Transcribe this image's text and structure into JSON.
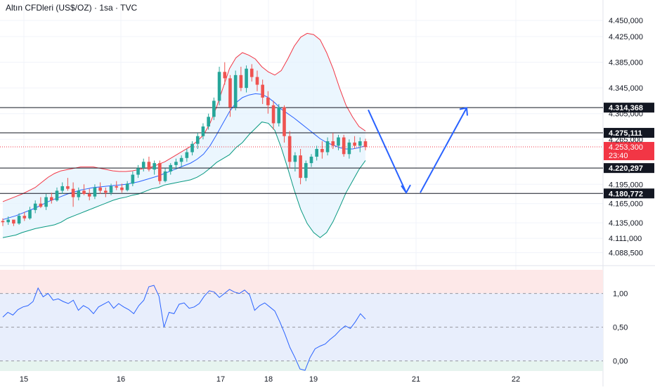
{
  "header": {
    "title": "Altın CFDleri (US$/OZ) · 1sa · TVC"
  },
  "colors": {
    "up": "#26a69a",
    "down": "#ef5350",
    "grid": "#f0f3fa",
    "text": "#131722",
    "bb_upper": "#f23645",
    "bb_lower": "#089981",
    "bb_basis": "#2962ff",
    "bb_fill": "#e3f2fd",
    "projection": "#2962ff",
    "osc_line": "#2962ff",
    "osc_top_band": "#fde8e8",
    "osc_mid_band": "#e8eefc",
    "osc_bottom_band": "#e6f4ef",
    "price_tag": "#f23645"
  },
  "chart_data": [
    {
      "type": "candlestick",
      "price_axis": {
        "ticks": [
          "4.450,000",
          "4.425,000",
          "4.385,000",
          "4.345,000",
          "4.305,000",
          "4.265,000",
          "4.195,000",
          "4.165,000",
          "4.135,000",
          "4.111,000",
          "4.088,500"
        ],
        "tick_values": [
          4450,
          4425,
          4385,
          4345,
          4305,
          4265,
          4195,
          4165,
          4135,
          4111,
          4088.5
        ],
        "range": [
          4075,
          4460
        ]
      },
      "time_axis": {
        "labels": [
          "15",
          "16",
          "17",
          "18",
          "19",
          "21",
          "22"
        ]
      },
      "horizontal_levels": [
        {
          "label": "4.314,368",
          "value": 4314.368
        },
        {
          "label": "4.275,111",
          "value": 4275.111
        },
        {
          "label": "4.220,297",
          "value": 4220.297
        },
        {
          "label": "4.180,772",
          "value": 4180.772
        }
      ],
      "current_price": {
        "label": "4.253,300",
        "value": 4253.3,
        "countdown": "23:40"
      },
      "candles": [
        [
          4138,
          4142,
          4130,
          4136
        ],
        [
          4136,
          4145,
          4132,
          4140
        ],
        [
          4140,
          4138,
          4130,
          4134
        ],
        [
          4134,
          4150,
          4132,
          4146
        ],
        [
          4146,
          4152,
          4138,
          4142
        ],
        [
          4142,
          4160,
          4140,
          4155
        ],
        [
          4155,
          4170,
          4150,
          4165
        ],
        [
          4165,
          4175,
          4158,
          4160
        ],
        [
          4160,
          4180,
          4155,
          4175
        ],
        [
          4175,
          4182,
          4165,
          4170
        ],
        [
          4170,
          4190,
          4168,
          4185
        ],
        [
          4185,
          4198,
          4180,
          4192
        ],
        [
          4192,
          4205,
          4185,
          4188
        ],
        [
          4188,
          4198,
          4160,
          4175
        ],
        [
          4175,
          4190,
          4170,
          4185
        ],
        [
          4185,
          4195,
          4178,
          4180
        ],
        [
          4180,
          4188,
          4170,
          4176
        ],
        [
          4176,
          4195,
          4172,
          4190
        ],
        [
          4190,
          4198,
          4180,
          4185
        ],
        [
          4185,
          4190,
          4175,
          4182
        ],
        [
          4182,
          4196,
          4178,
          4192
        ],
        [
          4192,
          4200,
          4186,
          4190
        ],
        [
          4190,
          4196,
          4182,
          4186
        ],
        [
          4186,
          4200,
          4184,
          4196
        ],
        [
          4196,
          4215,
          4192,
          4210
        ],
        [
          4210,
          4225,
          4205,
          4220
        ],
        [
          4220,
          4235,
          4215,
          4230
        ],
        [
          4230,
          4238,
          4215,
          4218
        ],
        [
          4218,
          4232,
          4210,
          4228
        ],
        [
          4228,
          4232,
          4195,
          4200
        ],
        [
          4200,
          4220,
          4198,
          4215
        ],
        [
          4215,
          4228,
          4210,
          4225
        ],
        [
          4225,
          4235,
          4218,
          4230
        ],
        [
          4230,
          4240,
          4222,
          4236
        ],
        [
          4236,
          4250,
          4230,
          4245
        ],
        [
          4245,
          4262,
          4240,
          4258
        ],
        [
          4258,
          4275,
          4250,
          4270
        ],
        [
          4270,
          4290,
          4265,
          4285
        ],
        [
          4285,
          4305,
          4280,
          4300
        ],
        [
          4300,
          4330,
          4295,
          4325
        ],
        [
          4325,
          4378,
          4318,
          4370
        ],
        [
          4370,
          4385,
          4350,
          4360
        ],
        [
          4360,
          4365,
          4300,
          4315
        ],
        [
          4315,
          4372,
          4310,
          4365
        ],
        [
          4365,
          4378,
          4340,
          4345
        ],
        [
          4345,
          4380,
          4338,
          4375
        ],
        [
          4375,
          4382,
          4355,
          4362
        ],
        [
          4362,
          4372,
          4340,
          4350
        ],
        [
          4350,
          4358,
          4320,
          4330
        ],
        [
          4330,
          4340,
          4305,
          4318
        ],
        [
          4318,
          4325,
          4280,
          4290
        ],
        [
          4290,
          4320,
          4285,
          4315
        ],
        [
          4315,
          4318,
          4260,
          4270
        ],
        [
          4270,
          4278,
          4220,
          4230
        ],
        [
          4230,
          4245,
          4215,
          4240
        ],
        [
          4240,
          4250,
          4195,
          4205
        ],
        [
          4205,
          4232,
          4200,
          4228
        ],
        [
          4228,
          4242,
          4222,
          4238
        ],
        [
          4238,
          4255,
          4232,
          4250
        ],
        [
          4250,
          4262,
          4235,
          4245
        ],
        [
          4245,
          4268,
          4240,
          4262
        ],
        [
          4262,
          4275,
          4250,
          4255
        ],
        [
          4255,
          4272,
          4248,
          4268
        ],
        [
          4268,
          4272,
          4238,
          4242
        ],
        [
          4242,
          4265,
          4235,
          4260
        ],
        [
          4260,
          4270,
          4250,
          4255
        ],
        [
          4255,
          4268,
          4245,
          4262
        ],
        [
          4262,
          4266,
          4248,
          4253
        ]
      ],
      "bollinger": {
        "upper": [
          4168,
          4172,
          4176,
          4180,
          4185,
          4190,
          4198,
          4206,
          4212,
          4216,
          4218,
          4220,
          4222,
          4222,
          4222,
          4220,
          4218,
          4216,
          4215,
          4215,
          4216,
          4218,
          4220,
          4222,
          4226,
          4230,
          4236,
          4242,
          4248,
          4254,
          4262,
          4272,
          4290,
          4315,
          4345,
          4375,
          4392,
          4400,
          4396,
          4390,
          4378,
          4370,
          4365,
          4372,
          4390,
          4410,
          4424,
          4430,
          4428,
          4420,
          4400,
          4375,
          4345,
          4318,
          4300,
          4285,
          4278
        ],
        "basis": [
          4140,
          4143,
          4146,
          4150,
          4154,
          4158,
          4163,
          4168,
          4172,
          4176,
          4180,
          4183,
          4186,
          4188,
          4190,
          4191,
          4192,
          4193,
          4194,
          4195,
          4197,
          4199,
          4202,
          4205,
          4208,
          4212,
          4216,
          4220,
          4224,
          4228,
          4234,
          4242,
          4255,
          4272,
          4290,
          4308,
          4322,
          4330,
          4334,
          4336,
          4335,
          4330,
          4322,
          4312,
          4305,
          4298,
          4290,
          4282,
          4274,
          4266,
          4260,
          4256,
          4252,
          4250,
          4250,
          4252,
          4255
        ],
        "lower": [
          4112,
          4114,
          4116,
          4120,
          4123,
          4126,
          4128,
          4130,
          4132,
          4136,
          4142,
          4146,
          4150,
          4154,
          4158,
          4162,
          4166,
          4170,
          4173,
          4175,
          4178,
          4180,
          4184,
          4188,
          4190,
          4194,
          4196,
          4198,
          4200,
          4202,
          4206,
          4212,
          4220,
          4229,
          4235,
          4241,
          4252,
          4260,
          4272,
          4282,
          4292,
          4290,
          4279,
          4252,
          4220,
          4186,
          4156,
          4134,
          4120,
          4112,
          4120,
          4137,
          4159,
          4182,
          4200,
          4218,
          4232
        ]
      },
      "projection_path": [
        [
          4300,
          4182
        ],
        [
          4182,
          4314
        ]
      ]
    },
    {
      "type": "line",
      "name": "",
      "y_axis": {
        "ticks": [
          "1,00",
          "0,50",
          "0,00"
        ],
        "tick_values": [
          1.0,
          0.5,
          0.0
        ],
        "range": [
          -0.15,
          1.35
        ]
      },
      "bands": [
        {
          "from": 1.0,
          "to": 1.35
        },
        {
          "from": 0.0,
          "to": 1.0
        },
        {
          "from": -0.15,
          "to": 0.0
        }
      ],
      "values": [
        0.65,
        0.72,
        0.68,
        0.76,
        0.8,
        0.82,
        0.88,
        1.08,
        0.95,
        1.0,
        0.9,
        0.92,
        0.88,
        0.85,
        0.9,
        0.75,
        0.82,
        0.78,
        0.7,
        0.8,
        0.84,
        0.88,
        0.78,
        0.85,
        0.8,
        0.76,
        0.7,
        0.82,
        0.9,
        1.1,
        1.12,
        0.96,
        0.5,
        0.72,
        0.7,
        0.84,
        0.86,
        0.78,
        0.8,
        0.85,
        0.96,
        1.04,
        1.02,
        0.94,
        1.0,
        1.06,
        1.02,
        1.0,
        1.05,
        0.98,
        0.75,
        0.82,
        0.86,
        0.8,
        0.74,
        0.58,
        0.4,
        0.2,
        0.05,
        -0.12,
        -0.14,
        0.05,
        0.18,
        0.22,
        0.25,
        0.32,
        0.38,
        0.46,
        0.52,
        0.48,
        0.58,
        0.7,
        0.62
      ]
    }
  ]
}
